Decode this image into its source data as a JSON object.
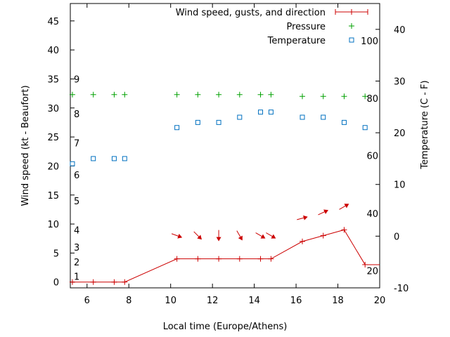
{
  "chart_data": {
    "type": "line",
    "xlabel": "Local time (Europe/Athens)",
    "ylabel": "Wind speed (kt - Beaufort)",
    "y2label": "Temperature (C - F)",
    "xlim": [
      5.2,
      20
    ],
    "ylim": [
      -1,
      48
    ],
    "y2lim": [
      -10,
      45
    ],
    "x_ticks": [
      6,
      8,
      10,
      12,
      14,
      16,
      18,
      20
    ],
    "y_ticks": [
      0,
      5,
      10,
      15,
      20,
      25,
      30,
      35,
      40,
      45
    ],
    "y2_ticks": [
      -10,
      0,
      10,
      20,
      30,
      40
    ],
    "beaufort_labels": [
      {
        "label": "1",
        "kt": 1
      },
      {
        "label": "2",
        "kt": 3.5
      },
      {
        "label": "3",
        "kt": 6
      },
      {
        "label": "4",
        "kt": 9
      },
      {
        "label": "5",
        "kt": 14
      },
      {
        "label": "6",
        "kt": 18.5
      },
      {
        "label": "7",
        "kt": 24
      },
      {
        "label": "8",
        "kt": 29
      },
      {
        "label": "9",
        "kt": 35
      }
    ],
    "fahrenheit_labels": [
      {
        "label": "20",
        "temp_c": -6.7
      },
      {
        "label": "40",
        "temp_c": 4.4
      },
      {
        "label": "60",
        "temp_c": 15.6
      },
      {
        "label": "80",
        "temp_c": 26.7
      },
      {
        "label": "100",
        "temp_c": 37.8
      }
    ],
    "legend_position": "top-right",
    "series": [
      {
        "name": "Wind speed, gusts, and direction",
        "color": "#cc0000",
        "axis": "left",
        "x": [
          5.3,
          6.3,
          7.3,
          7.8,
          10.3,
          11.3,
          12.3,
          13.3,
          14.3,
          14.8,
          16.3,
          17.3,
          18.3,
          19.3
        ],
        "values": [
          0,
          0,
          0,
          0,
          4,
          4,
          4,
          4,
          4,
          4,
          7,
          8,
          9,
          3
        ],
        "direction_arrows": [
          {
            "x": 10.3,
            "y": 8,
            "angle": 20
          },
          {
            "x": 11.3,
            "y": 8,
            "angle": 45
          },
          {
            "x": 12.3,
            "y": 8,
            "angle": 90
          },
          {
            "x": 13.3,
            "y": 8,
            "angle": 60
          },
          {
            "x": 14.3,
            "y": 8,
            "angle": 30
          },
          {
            "x": 14.8,
            "y": 8,
            "angle": 30
          },
          {
            "x": 16.3,
            "y": 11,
            "angle": -15
          },
          {
            "x": 17.3,
            "y": 12,
            "angle": -25
          },
          {
            "x": 18.3,
            "y": 13,
            "angle": -30
          }
        ]
      },
      {
        "name": "Pressure",
        "color": "#00a000",
        "axis": "left",
        "x": [
          5.3,
          6.3,
          7.3,
          7.8,
          10.3,
          11.3,
          12.3,
          13.3,
          14.3,
          14.8,
          16.3,
          17.3,
          18.3,
          19.3
        ],
        "values": [
          32.3,
          32.3,
          32.3,
          32.3,
          32.3,
          32.3,
          32.3,
          32.3,
          32.3,
          32.3,
          32.0,
          32.0,
          32.0,
          32.0
        ]
      },
      {
        "name": "Temperature",
        "color": "#0070c0",
        "axis": "right",
        "x": [
          5.3,
          6.3,
          7.3,
          7.8,
          10.3,
          11.3,
          12.3,
          13.3,
          14.3,
          14.8,
          16.3,
          17.3,
          18.3,
          19.3
        ],
        "values": [
          14,
          15,
          15,
          15,
          21,
          22,
          22,
          23,
          24,
          24,
          23,
          23,
          22,
          21
        ]
      }
    ]
  }
}
